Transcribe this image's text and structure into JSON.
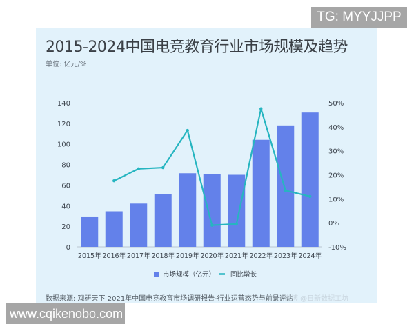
{
  "chart_data": {
    "type": "bar",
    "title": "2015-2024中国电竞教育行业市场规模及趋势",
    "subtitle": "单位: 亿元/%",
    "categories": [
      "2015年",
      "2016年",
      "2017年",
      "2018年",
      "2019年",
      "2020年",
      "2021年",
      "2022年",
      "2023年",
      "2024年"
    ],
    "series": [
      {
        "name": "市场规模（亿元）",
        "type": "bar",
        "axis": "left",
        "color": "#6381ea",
        "values": [
          29.5,
          34.5,
          42,
          51.5,
          71.5,
          70.5,
          70,
          104,
          118,
          130.5
        ]
      },
      {
        "name": "同比增长",
        "type": "line",
        "axis": "right",
        "color": "#26b5c0",
        "values": [
          null,
          17.5,
          22.5,
          23,
          38.5,
          -1,
          -0.5,
          47.5,
          13.5,
          11
        ]
      }
    ],
    "y_left": {
      "range": [
        0,
        140
      ],
      "ticks": [
        "0",
        "20",
        "40",
        "60",
        "80",
        "100",
        "120",
        "140"
      ]
    },
    "y_right": {
      "range": [
        -10,
        50
      ],
      "ticks": [
        "-10%",
        "0%",
        "10%",
        "20%",
        "30%",
        "40%",
        "50%"
      ]
    },
    "grid": false,
    "legend": "bottom",
    "source": "数据来源: 观研天下 2021年中国电竞教育市场调研报告-行业运营态势与前景评估"
  },
  "watermarks": {
    "top": "TG: MYYJJPP",
    "bottom": "www.cqikenobo.com",
    "weibo": "微博 @日新数据工坊"
  }
}
